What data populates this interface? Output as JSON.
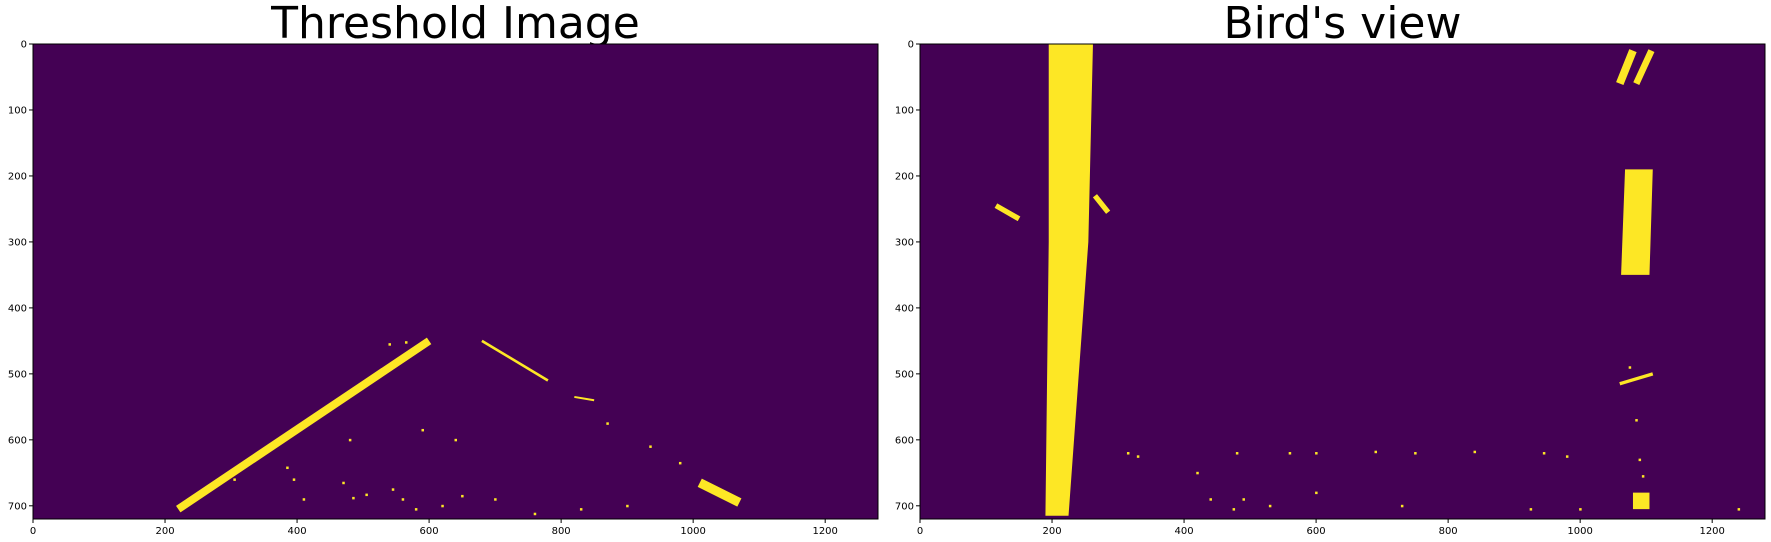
{
  "chart_data": [
    {
      "type": "heatmap",
      "title": "Threshold Image",
      "xlim": [
        0,
        1280
      ],
      "ylim": [
        720,
        0
      ],
      "xticks": [
        0,
        200,
        400,
        600,
        800,
        1000,
        1200
      ],
      "yticks": [
        0,
        100,
        200,
        300,
        400,
        500,
        600,
        700
      ],
      "colormap": {
        "0": "#440154",
        "1": "#fde725"
      },
      "features": [
        {
          "kind": "thick_line",
          "from": [
            220,
            705
          ],
          "to": [
            600,
            450
          ],
          "width": 12
        },
        {
          "kind": "thick_line",
          "from": [
            680,
            450
          ],
          "to": [
            780,
            510
          ],
          "width": 4
        },
        {
          "kind": "thick_line",
          "from": [
            820,
            535
          ],
          "to": [
            850,
            540
          ],
          "width": 3
        },
        {
          "kind": "thick_line",
          "from": [
            1010,
            665
          ],
          "to": [
            1070,
            695
          ],
          "width": 14
        },
        {
          "kind": "dot",
          "at": [
            540,
            455
          ]
        },
        {
          "kind": "dot",
          "at": [
            565,
            452
          ]
        },
        {
          "kind": "dot",
          "at": [
            870,
            575
          ]
        },
        {
          "kind": "dot",
          "at": [
            935,
            610
          ]
        },
        {
          "kind": "dot",
          "at": [
            980,
            635
          ]
        },
        {
          "kind": "dot",
          "at": [
            590,
            585
          ]
        },
        {
          "kind": "dot",
          "at": [
            640,
            600
          ]
        },
        {
          "kind": "dot",
          "at": [
            480,
            600
          ]
        },
        {
          "kind": "dot",
          "at": [
            305,
            660
          ]
        },
        {
          "kind": "dot",
          "at": [
            385,
            642
          ]
        },
        {
          "kind": "dot",
          "at": [
            395,
            660
          ]
        },
        {
          "kind": "dot",
          "at": [
            470,
            665
          ]
        },
        {
          "kind": "dot",
          "at": [
            410,
            690
          ]
        },
        {
          "kind": "dot",
          "at": [
            485,
            688
          ]
        },
        {
          "kind": "dot",
          "at": [
            505,
            683
          ]
        },
        {
          "kind": "dot",
          "at": [
            545,
            675
          ]
        },
        {
          "kind": "dot",
          "at": [
            560,
            690
          ]
        },
        {
          "kind": "dot",
          "at": [
            580,
            705
          ]
        },
        {
          "kind": "dot",
          "at": [
            620,
            700
          ]
        },
        {
          "kind": "dot",
          "at": [
            650,
            685
          ]
        },
        {
          "kind": "dot",
          "at": [
            700,
            690
          ]
        },
        {
          "kind": "dot",
          "at": [
            760,
            712
          ]
        },
        {
          "kind": "dot",
          "at": [
            830,
            705
          ]
        },
        {
          "kind": "dot",
          "at": [
            900,
            700
          ]
        }
      ]
    },
    {
      "type": "heatmap",
      "title": "Bird's view",
      "xlim": [
        0,
        1280
      ],
      "ylim": [
        720,
        0
      ],
      "xticks": [
        0,
        200,
        400,
        600,
        800,
        1000,
        1200
      ],
      "yticks": [
        0,
        100,
        200,
        300,
        400,
        500,
        600,
        700
      ],
      "colormap": {
        "0": "#440154",
        "1": "#fde725"
      },
      "features": [
        {
          "kind": "polygon",
          "points": [
            [
              195,
              0
            ],
            [
              262,
              0
            ],
            [
              255,
              300
            ],
            [
              225,
              715
            ],
            [
              190,
              715
            ],
            [
              195,
              300
            ]
          ]
        },
        {
          "kind": "polygon",
          "points": [
            [
              1068,
              190
            ],
            [
              1110,
              190
            ],
            [
              1105,
              350
            ],
            [
              1062,
              350
            ]
          ]
        },
        {
          "kind": "thick_line",
          "from": [
            1060,
            60
          ],
          "to": [
            1080,
            10
          ],
          "width": 12
        },
        {
          "kind": "thick_line",
          "from": [
            1085,
            60
          ],
          "to": [
            1108,
            10
          ],
          "width": 10
        },
        {
          "kind": "thick_line",
          "from": [
            115,
            245
          ],
          "to": [
            150,
            265
          ],
          "width": 8
        },
        {
          "kind": "thick_line",
          "from": [
            265,
            230
          ],
          "to": [
            285,
            255
          ],
          "width": 8
        },
        {
          "kind": "thick_line",
          "from": [
            1060,
            515
          ],
          "to": [
            1110,
            500
          ],
          "width": 5
        },
        {
          "kind": "polygon",
          "points": [
            [
              1080,
              680
            ],
            [
              1105,
              680
            ],
            [
              1105,
              705
            ],
            [
              1080,
              705
            ]
          ]
        },
        {
          "kind": "dot",
          "at": [
            1075,
            490
          ]
        },
        {
          "kind": "dot",
          "at": [
            1085,
            570
          ]
        },
        {
          "kind": "dot",
          "at": [
            1090,
            630
          ]
        },
        {
          "kind": "dot",
          "at": [
            1095,
            655
          ]
        },
        {
          "kind": "dot",
          "at": [
            315,
            620
          ]
        },
        {
          "kind": "dot",
          "at": [
            330,
            625
          ]
        },
        {
          "kind": "dot",
          "at": [
            480,
            620
          ]
        },
        {
          "kind": "dot",
          "at": [
            560,
            620
          ]
        },
        {
          "kind": "dot",
          "at": [
            600,
            620
          ]
        },
        {
          "kind": "dot",
          "at": [
            690,
            618
          ]
        },
        {
          "kind": "dot",
          "at": [
            750,
            620
          ]
        },
        {
          "kind": "dot",
          "at": [
            840,
            618
          ]
        },
        {
          "kind": "dot",
          "at": [
            945,
            620
          ]
        },
        {
          "kind": "dot",
          "at": [
            980,
            625
          ]
        },
        {
          "kind": "dot",
          "at": [
            420,
            650
          ]
        },
        {
          "kind": "dot",
          "at": [
            440,
            690
          ]
        },
        {
          "kind": "dot",
          "at": [
            475,
            705
          ]
        },
        {
          "kind": "dot",
          "at": [
            490,
            690
          ]
        },
        {
          "kind": "dot",
          "at": [
            530,
            700
          ]
        },
        {
          "kind": "dot",
          "at": [
            600,
            680
          ]
        },
        {
          "kind": "dot",
          "at": [
            730,
            700
          ]
        },
        {
          "kind": "dot",
          "at": [
            925,
            705
          ]
        },
        {
          "kind": "dot",
          "at": [
            1000,
            705
          ]
        },
        {
          "kind": "dot",
          "at": [
            1240,
            705
          ]
        }
      ]
    }
  ]
}
